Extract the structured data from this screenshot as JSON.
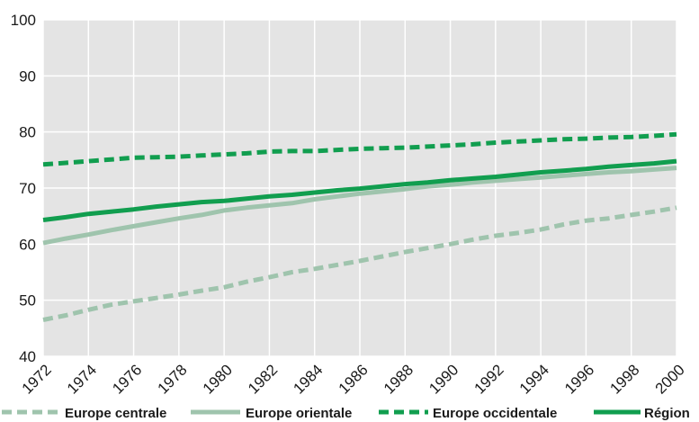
{
  "chart_data": {
    "type": "line",
    "x": [
      1972,
      1973,
      1974,
      1975,
      1976,
      1977,
      1978,
      1979,
      1980,
      1981,
      1982,
      1983,
      1984,
      1985,
      1986,
      1987,
      1988,
      1989,
      1990,
      1991,
      1992,
      1993,
      1994,
      1995,
      1996,
      1997,
      1998,
      1999,
      2000
    ],
    "x_tick_labels": [
      "1972",
      "1974",
      "1976",
      "1978",
      "1980",
      "1982",
      "1984",
      "1986",
      "1988",
      "1990",
      "1992",
      "1994",
      "1996",
      "1998",
      "2000"
    ],
    "y_tick_labels": [
      "40",
      "50",
      "60",
      "70",
      "80",
      "90",
      "100"
    ],
    "ylim": [
      40,
      100
    ],
    "grid": true,
    "legend_position": "bottom",
    "series": [
      {
        "name": "Europe centrale",
        "color": "#9fc4ad",
        "style": "dashed",
        "values": [
          46.5,
          47.3,
          48.3,
          49.2,
          49.8,
          50.4,
          51.0,
          51.7,
          52.3,
          53.3,
          54.1,
          55.0,
          55.6,
          56.3,
          57.0,
          57.8,
          58.6,
          59.3,
          60.0,
          60.8,
          61.5,
          62.0,
          62.6,
          63.5,
          64.2,
          64.6,
          65.2,
          65.8,
          66.5
        ],
        "label": ""
      },
      {
        "name": "Europe orientale",
        "color": "#9fc4ad",
        "style": "solid",
        "values": [
          60.2,
          61.0,
          61.7,
          62.5,
          63.2,
          63.9,
          64.6,
          65.2,
          66.0,
          66.5,
          66.9,
          67.3,
          68.0,
          68.5,
          69.0,
          69.4,
          69.8,
          70.3,
          70.6,
          71.0,
          71.3,
          71.6,
          71.9,
          72.2,
          72.5,
          72.8,
          73.0,
          73.3,
          73.6
        ],
        "label": ""
      },
      {
        "name": "Europe occidentale",
        "color": "#119e4f",
        "style": "dashed",
        "values": [
          74.2,
          74.5,
          74.8,
          75.1,
          75.4,
          75.5,
          75.6,
          75.8,
          76.0,
          76.2,
          76.5,
          76.6,
          76.6,
          76.8,
          77.0,
          77.1,
          77.2,
          77.4,
          77.6,
          77.8,
          78.1,
          78.3,
          78.5,
          78.7,
          78.8,
          79.0,
          79.1,
          79.3,
          79.6
        ],
        "label": ""
      },
      {
        "name": "Région",
        "color": "#119e4f",
        "style": "solid",
        "values": [
          64.3,
          64.8,
          65.4,
          65.8,
          66.2,
          66.7,
          67.1,
          67.5,
          67.7,
          68.1,
          68.5,
          68.8,
          69.2,
          69.6,
          69.9,
          70.3,
          70.7,
          71.0,
          71.4,
          71.7,
          72.0,
          72.4,
          72.8,
          73.1,
          73.4,
          73.8,
          74.1,
          74.4,
          74.8
        ],
        "label": ""
      }
    ]
  }
}
